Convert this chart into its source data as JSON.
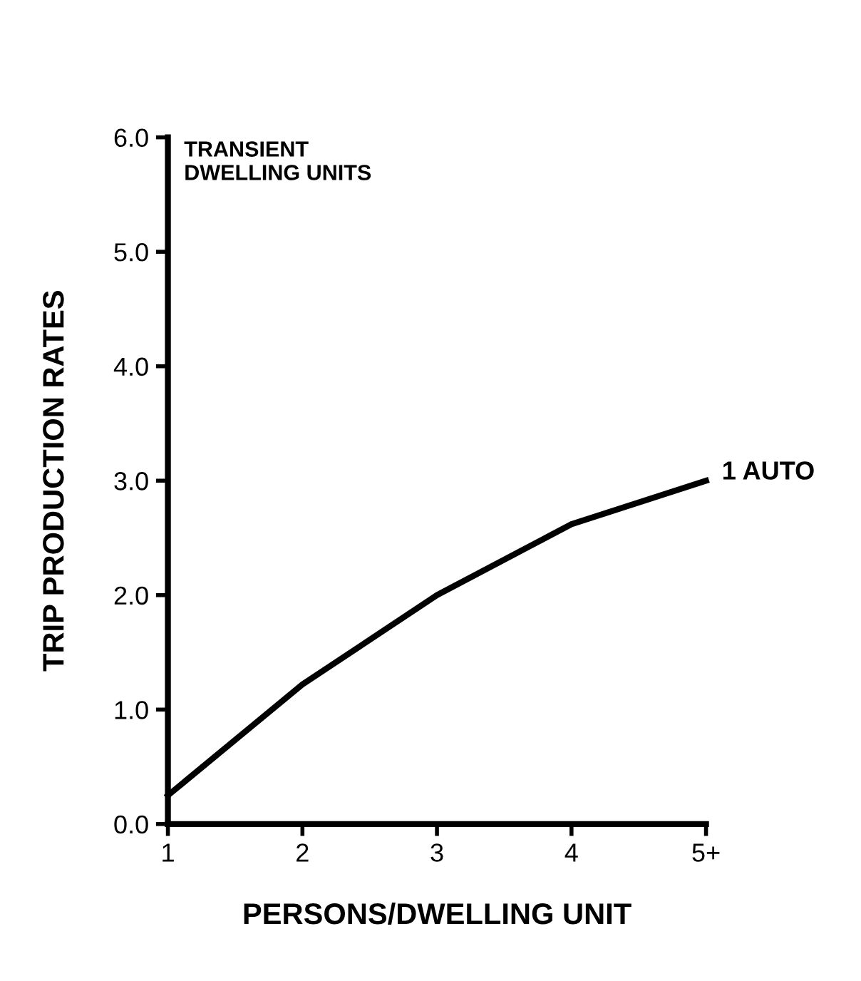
{
  "chart_data": {
    "type": "line",
    "xlabel": "PERSONS/DWELLING UNIT",
    "ylabel": "TRIP PRODUCTION RATES",
    "annotations": [
      "TRANSIENT\nDWELLING UNITS"
    ],
    "x": [
      1,
      2,
      3,
      4,
      5
    ],
    "series": [
      {
        "name": "1 AUTO",
        "color": "#000000",
        "values": [
          0.25,
          1.22,
          2.0,
          2.62,
          3.0
        ]
      }
    ],
    "xlim": [
      1,
      5
    ],
    "xticks": [
      1,
      2,
      3,
      4,
      {
        "value": 5,
        "label": "5+"
      }
    ],
    "ylim": [
      0,
      6
    ],
    "yticks": [
      {
        "value": 0,
        "label": "0.0"
      },
      {
        "value": 1,
        "label": "1.0"
      },
      {
        "value": 2,
        "label": "2.0"
      },
      {
        "value": 3,
        "label": "3.0"
      },
      {
        "value": 4,
        "label": "4.0"
      },
      {
        "value": 5,
        "label": "5.0"
      },
      {
        "value": 6,
        "label": "6.0"
      }
    ],
    "grid": false,
    "legend": false,
    "marker": "none",
    "line_style": "solid"
  }
}
